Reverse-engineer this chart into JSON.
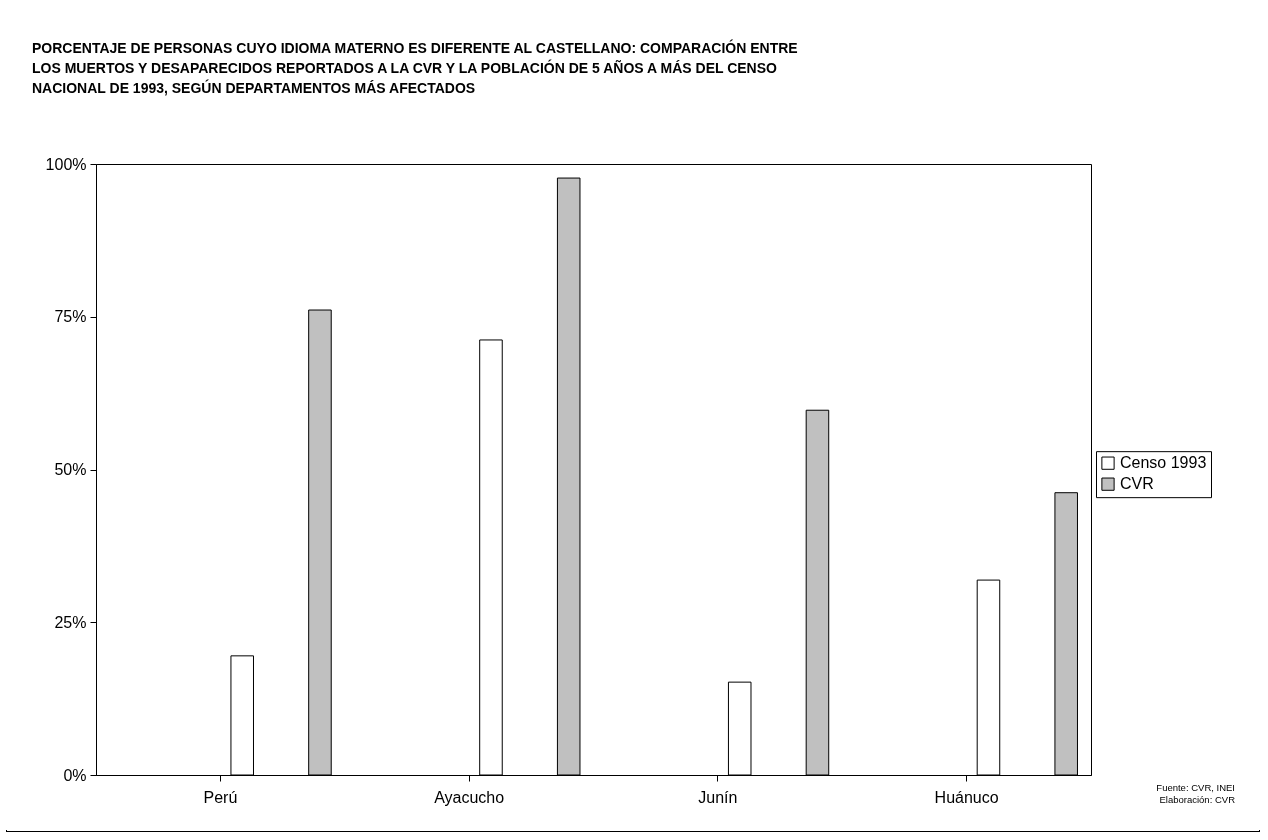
{
  "chart_data": {
    "type": "bar",
    "title": "PORCENTAJE DE PERSONAS CUYO IDIOMA MATERNO ES DIFERENTE AL CASTELLANO: COMPARACIÓN ENTRE\nLOS MUERTOS Y DESAPARECIDOS REPORTADOS A LA CVR Y LA POBLACIÓN DE 5 AÑOS A MÁS DEL CENSO\nNACIONAL DE 1993, SEGÚN DEPARTAMENTOS MÁS AFECTADOS",
    "categories": [
      "Perú",
      "Ayacucho",
      "Junín",
      "Huánuco"
    ],
    "series": [
      {
        "name": "Censo 1993",
        "color": "#ffffff",
        "values": [
          19.5,
          71.2,
          15.2,
          31.9
        ]
      },
      {
        "name": "CVR",
        "color": "#c0c0c0",
        "values": [
          76.1,
          97.7,
          59.7,
          46.2
        ]
      }
    ],
    "ylim": [
      0,
      100
    ],
    "yticks": [
      {
        "value": 0,
        "label": "0%"
      },
      {
        "value": 25,
        "label": "25%"
      },
      {
        "value": 50,
        "label": "50%"
      },
      {
        "value": 75,
        "label": "75%"
      },
      {
        "value": 100,
        "label": "100%"
      }
    ],
    "grid": false,
    "legend": "right",
    "annotations": [
      "Fuente: CVR, INEI",
      "Elaboración: CVR"
    ]
  }
}
